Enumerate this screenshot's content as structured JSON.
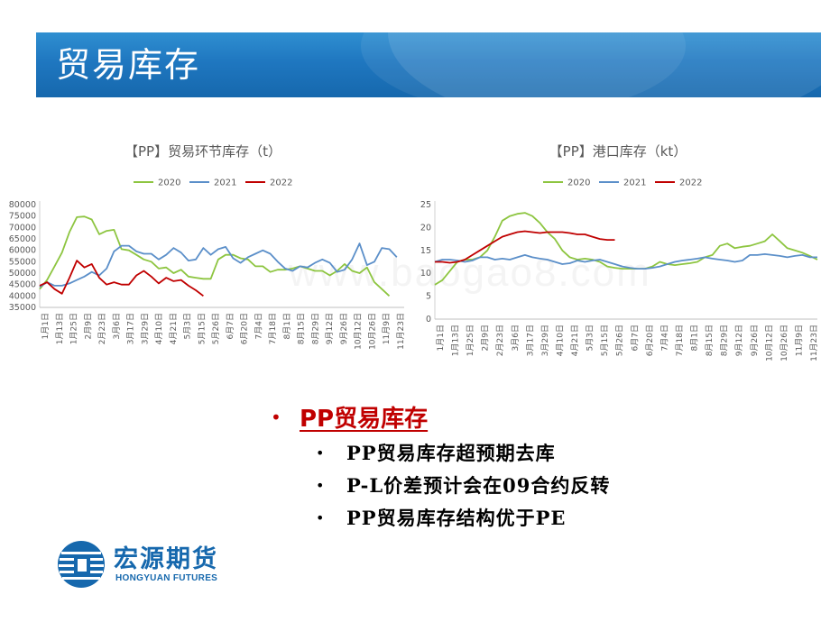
{
  "header": {
    "title": "贸易库存"
  },
  "watermark": "www.baogao8.com",
  "chart_data": [
    {
      "type": "line",
      "title": "【PP】贸易环节库存（t）",
      "legend_position": "top",
      "ylim": [
        35000,
        80000
      ],
      "yticks": [
        35000,
        40000,
        45000,
        50000,
        55000,
        60000,
        65000,
        70000,
        75000,
        80000
      ],
      "x_labels": [
        "1月1日",
        "1月13日",
        "1月25日",
        "2月9日",
        "2月23日",
        "3月6日",
        "3月17日",
        "3月29日",
        "4月10日",
        "4月21日",
        "5月3日",
        "5月15日",
        "5月26日",
        "6月7日",
        "6月20日",
        "7月4日",
        "7月18日",
        "8月1日",
        "8月15日",
        "8月29日",
        "9月12日",
        "9月26日",
        "10月12日",
        "10月26日",
        "11月9日",
        "11月23日"
      ],
      "n_points": 50,
      "grid": false,
      "series": [
        {
          "name": "2020",
          "color": "#8dc540",
          "values": [
            43000,
            47000,
            53000,
            59000,
            68000,
            74500,
            74800,
            73500,
            67000,
            68500,
            69000,
            60500,
            60000,
            58000,
            56000,
            55000,
            52000,
            52500,
            50000,
            51500,
            48500,
            48000,
            47500,
            47500,
            56000,
            58000,
            58000,
            56500,
            56000,
            53000,
            53000,
            50500,
            51500,
            51500,
            52000,
            53000,
            52000,
            51000,
            51000,
            49000,
            51000,
            54000,
            51000,
            50000,
            52500,
            46000,
            43000,
            40000,
            null,
            null
          ]
        },
        {
          "name": "2021",
          "color": "#5b8fc9",
          "values": [
            44000,
            46000,
            44500,
            44500,
            45500,
            47000,
            48500,
            50500,
            49000,
            52000,
            59500,
            62000,
            62000,
            59500,
            58500,
            58500,
            56000,
            58000,
            61000,
            59000,
            55500,
            56000,
            61000,
            58000,
            60500,
            61500,
            56500,
            54500,
            57000,
            58500,
            60000,
            58500,
            55000,
            52000,
            51000,
            53000,
            52500,
            54500,
            56000,
            54500,
            50500,
            51500,
            56000,
            63000,
            53500,
            55000,
            61000,
            60500,
            57000,
            null
          ]
        },
        {
          "name": "2022",
          "color": "#c00000",
          "values": [
            44500,
            46000,
            43000,
            41000,
            48000,
            55500,
            52500,
            54000,
            48000,
            45000,
            46000,
            45000,
            45000,
            49000,
            51000,
            48500,
            45500,
            48000,
            46500,
            47000,
            44500,
            42500,
            40000,
            null,
            null,
            null,
            null,
            null,
            null,
            null,
            null,
            null,
            null,
            null,
            null,
            null,
            null,
            null,
            null,
            null,
            null,
            null,
            null,
            null,
            null,
            null,
            null,
            null,
            null,
            null
          ]
        }
      ]
    },
    {
      "type": "line",
      "title": "【PP】港口库存（kt）",
      "legend_position": "top",
      "ylim": [
        0,
        25
      ],
      "yticks": [
        0,
        5,
        10,
        15,
        20,
        25
      ],
      "x_labels": [
        "1月1日",
        "1月13日",
        "1月25日",
        "2月9日",
        "2月23日",
        "3月6日",
        "3月17日",
        "3月29日",
        "4月10日",
        "4月21日",
        "5月3日",
        "5月15日",
        "5月26日",
        "6月7日",
        "6月20日",
        "7月4日",
        "7月18日",
        "8月1日",
        "8月15日",
        "8月29日",
        "9月12日",
        "9月26日",
        "10月12日",
        "10月26日",
        "11月9日",
        "11月23日"
      ],
      "n_points": 52,
      "grid": false,
      "series": [
        {
          "name": "2020",
          "color": "#8dc540",
          "values": [
            7.5,
            8.5,
            10.5,
            12.5,
            13.0,
            13.0,
            13.5,
            15.0,
            18.0,
            21.5,
            22.5,
            23.0,
            23.2,
            22.5,
            21.0,
            19.0,
            17.5,
            15.0,
            13.5,
            13.0,
            13.2,
            13.0,
            12.5,
            11.5,
            11.2,
            11.0,
            11.0,
            11.0,
            11.0,
            11.5,
            12.5,
            12.0,
            11.8,
            12.0,
            12.2,
            12.5,
            13.5,
            14.0,
            16.0,
            16.5,
            15.5,
            15.8,
            16.0,
            16.5,
            17.0,
            18.5,
            17.0,
            15.5,
            15.0,
            14.5,
            13.8,
            13.0
          ]
        },
        {
          "name": "2021",
          "color": "#5b8fc9",
          "values": [
            12.5,
            13.0,
            13.0,
            12.8,
            12.5,
            12.8,
            13.5,
            13.5,
            13.0,
            13.2,
            13.0,
            13.5,
            14.0,
            13.5,
            13.2,
            13.0,
            12.5,
            12.0,
            12.2,
            12.8,
            12.5,
            12.8,
            13.0,
            12.5,
            12.0,
            11.5,
            11.2,
            11.0,
            11.0,
            11.2,
            11.5,
            12.0,
            12.5,
            12.8,
            13.0,
            13.2,
            13.5,
            13.2,
            13.0,
            12.8,
            12.5,
            12.8,
            14.0,
            14.0,
            14.2,
            14.0,
            13.8,
            13.5,
            13.8,
            14.0,
            13.5,
            13.5
          ]
        },
        {
          "name": "2022",
          "color": "#c00000",
          "values": [
            12.5,
            12.5,
            12.3,
            12.5,
            13.0,
            14.0,
            15.0,
            16.0,
            17.0,
            18.0,
            18.5,
            19.0,
            19.2,
            19.0,
            18.8,
            19.0,
            19.0,
            19.0,
            18.8,
            18.5,
            18.5,
            18.0,
            17.5,
            17.3,
            17.3,
            null,
            null,
            null,
            null,
            null,
            null,
            null,
            null,
            null,
            null,
            null,
            null,
            null,
            null,
            null,
            null,
            null,
            null,
            null,
            null,
            null,
            null,
            null,
            null,
            null,
            null,
            null
          ]
        }
      ]
    }
  ],
  "bullets": {
    "main": "PP贸易库存",
    "items": [
      "PP贸易库存超预期去库",
      "P-L价差预计会在09合约反转",
      "PP贸易库存结构优于PE"
    ]
  },
  "logo": {
    "cn": "宏源期货",
    "en": "HONGYUAN FUTURES"
  },
  "icons": {
    "bullet": "•"
  }
}
